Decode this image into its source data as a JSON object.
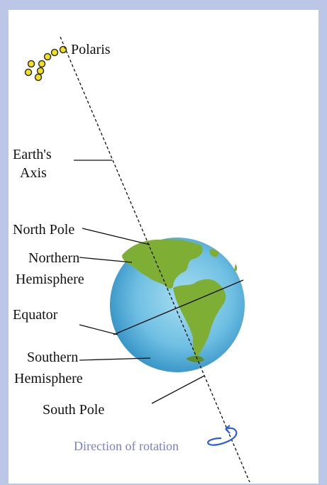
{
  "labels": {
    "polaris": "Polaris",
    "earths_axis": [
      "Earth's",
      "Axis"
    ],
    "north_pole": "North Pole",
    "northern_hemisphere": [
      "Northern",
      "Hemisphere"
    ],
    "equator": "Equator",
    "southern_hemisphere": [
      "Southern",
      "Hemisphere"
    ],
    "south_pole": "South Pole",
    "direction_of_rotation": "Direction of rotation"
  }
}
